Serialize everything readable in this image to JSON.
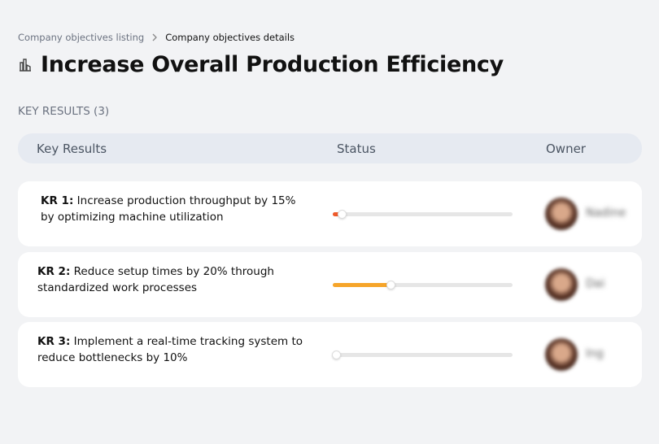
{
  "breadcrumb": {
    "items": [
      "Company objectives listing",
      "Company objectives details"
    ]
  },
  "header": {
    "title": "Increase Overall Production Efficiency"
  },
  "section": {
    "title": "KEY RESULTS (3)"
  },
  "table": {
    "columns": [
      "Key Results",
      "Status",
      "Owner"
    ],
    "rows": [
      {
        "label": "KR 1:",
        "text": "Increase production throughput by 15% by optimizing machine utilization",
        "progress": 5,
        "color": "#ef5a2a",
        "owner": "Nadine"
      },
      {
        "label": "KR 2:",
        "text": "Reduce setup times by 20% through standardized work processes",
        "progress": 32,
        "color": "#f6a52a",
        "owner": "Dai"
      },
      {
        "label": "KR 3:",
        "text": "Implement a real-time tracking system to reduce bottlenecks by 10%",
        "progress": 2,
        "color": "#ef5a2a",
        "owner": "Ing"
      }
    ]
  }
}
